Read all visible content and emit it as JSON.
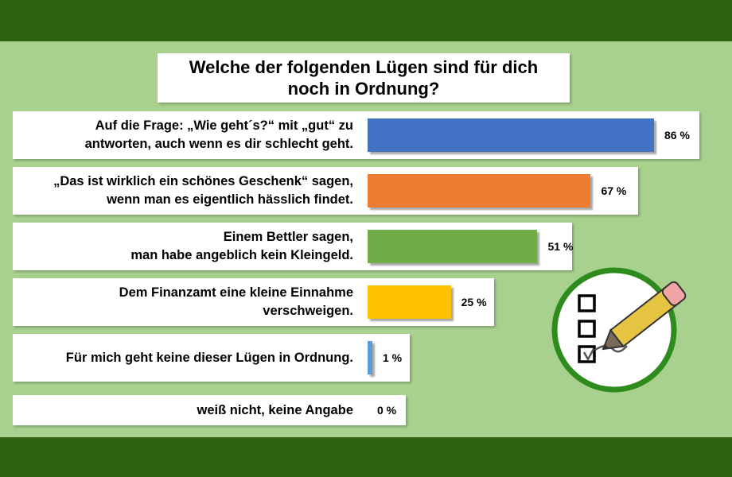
{
  "title": "Welche der folgenden Lügen sind für dich\nnoch in Ordnung?",
  "chart_data": {
    "type": "bar",
    "orientation": "horizontal",
    "title": "Welche der folgenden Lügen sind für dich noch in Ordnung?",
    "categories": [
      "Auf die Frage: „Wie geht´s?“ mit „gut“ zu antworten, auch wenn es dir schlecht geht.",
      "„Das ist wirklich ein schönes Geschenk“ sagen, wenn man es eigentlich hässlich findet.",
      "Einem Bettler sagen, man habe angeblich kein Kleingeld.",
      "Dem Finanzamt eine kleine Einnahme verschweigen.",
      "Für mich geht keine dieser Lügen in Ordnung.",
      "weiß nicht, keine Angabe"
    ],
    "values": [
      86,
      67,
      51,
      25,
      1,
      0
    ],
    "value_labels": [
      "86 %",
      "67 %",
      "51 %",
      "25 %",
      "1 %",
      "0 %"
    ],
    "bar_colors": [
      "#4472c4",
      "#ed7d31",
      "#70ad47",
      "#ffc000",
      "#5b9bd5",
      "#a5a5a5"
    ],
    "xlim": [
      0,
      100
    ],
    "grid": false,
    "legend": "none"
  },
  "rows": [
    {
      "label": "Auf die Frage: „Wie geht´s?“ mit „gut“ zu\nantworten, auch wenn es dir schlecht geht."
    },
    {
      "label": "„Das ist wirklich ein schönes Geschenk“ sagen,\nwenn man es eigentlich hässlich findet."
    },
    {
      "label": "Einem Bettler sagen,\nman habe angeblich kein Kleingeld."
    },
    {
      "label": "Dem Finanzamt eine kleine Einnahme\nverschweigen."
    },
    {
      "label": "Für mich geht keine dieser Lügen in Ordnung."
    },
    {
      "label": "weiß nicht, keine Angabe"
    }
  ],
  "colors": {
    "background": "#a9d18e",
    "band": "#2f6312",
    "icon_ring": "#2e8b1e",
    "pencil": "#e4c441"
  },
  "icon": "checklist-pencil-icon"
}
